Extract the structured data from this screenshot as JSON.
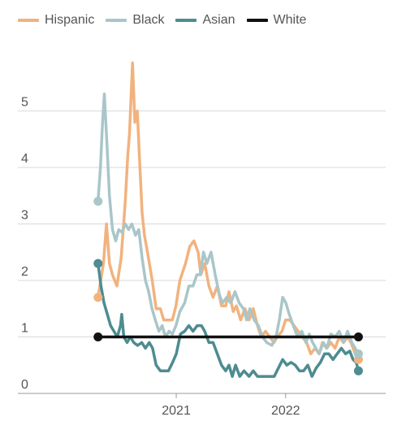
{
  "chart_data": {
    "type": "line",
    "title": "",
    "xlabel": "",
    "ylabel": "",
    "x_tick_labels": [
      "2021",
      "2022"
    ],
    "y_ticks": [
      0,
      1,
      2,
      3,
      4,
      5
    ],
    "ylim": [
      0,
      6.1
    ],
    "xlim": [
      "2020-01-01",
      "2022-12-01"
    ],
    "grid": "horizontal",
    "legend_position": "top-left",
    "series": [
      {
        "name": "Hispanic",
        "color": "#f2b27e",
        "points": [
          [
            "2020-04-15",
            1.7
          ],
          [
            "2020-05-03",
            2.3
          ],
          [
            "2020-05-13",
            3.0
          ],
          [
            "2020-05-23",
            2.3
          ],
          [
            "2020-06-02",
            2.1
          ],
          [
            "2020-06-17",
            1.9
          ],
          [
            "2020-07-01",
            2.4
          ],
          [
            "2020-07-15",
            3.4
          ],
          [
            "2020-07-23",
            4.2
          ],
          [
            "2020-07-29",
            4.6
          ],
          [
            "2020-08-08",
            5.85
          ],
          [
            "2020-08-16",
            4.8
          ],
          [
            "2020-08-24",
            5.0
          ],
          [
            "2020-09-01",
            4.1
          ],
          [
            "2020-09-09",
            3.2
          ],
          [
            "2020-09-17",
            2.8
          ],
          [
            "2020-09-27",
            2.5
          ],
          [
            "2020-10-13",
            2.0
          ],
          [
            "2020-10-26",
            1.5
          ],
          [
            "2020-11-09",
            1.5
          ],
          [
            "2020-11-20",
            1.3
          ],
          [
            "2020-12-05",
            1.3
          ],
          [
            "2020-12-19",
            1.3
          ],
          [
            "2020-12-31",
            1.55
          ],
          [
            "2021-01-13",
            2.0
          ],
          [
            "2021-02-01",
            2.3
          ],
          [
            "2021-02-15",
            2.6
          ],
          [
            "2021-03-01",
            2.7
          ],
          [
            "2021-03-15",
            2.5
          ],
          [
            "2021-03-24",
            2.1
          ],
          [
            "2021-04-06",
            2.3
          ],
          [
            "2021-04-20",
            1.9
          ],
          [
            "2021-05-04",
            1.7
          ],
          [
            "2021-05-18",
            1.9
          ],
          [
            "2021-06-01",
            1.55
          ],
          [
            "2021-06-15",
            1.55
          ],
          [
            "2021-06-26",
            1.8
          ],
          [
            "2021-07-10",
            1.45
          ],
          [
            "2021-07-21",
            1.55
          ],
          [
            "2021-08-04",
            1.3
          ],
          [
            "2021-08-18",
            1.5
          ],
          [
            "2021-09-01",
            1.3
          ],
          [
            "2021-09-15",
            1.5
          ],
          [
            "2021-09-29",
            1.2
          ],
          [
            "2021-10-12",
            1.0
          ],
          [
            "2021-10-26",
            1.1
          ],
          [
            "2021-11-09",
            1.0
          ],
          [
            "2021-11-23",
            0.9
          ],
          [
            "2021-12-04",
            1.0
          ],
          [
            "2021-12-20",
            1.1
          ],
          [
            "2022-01-01",
            1.3
          ],
          [
            "2022-01-15",
            1.3
          ],
          [
            "2022-01-29",
            1.2
          ],
          [
            "2022-02-12",
            1.1
          ],
          [
            "2022-02-26",
            1.0
          ],
          [
            "2022-03-12",
            0.9
          ],
          [
            "2022-03-26",
            0.7
          ],
          [
            "2022-04-09",
            0.8
          ],
          [
            "2022-04-23",
            0.7
          ],
          [
            "2022-05-04",
            0.9
          ],
          [
            "2022-05-18",
            0.8
          ],
          [
            "2022-06-01",
            0.9
          ],
          [
            "2022-06-15",
            0.8
          ],
          [
            "2022-06-29",
            1.0
          ],
          [
            "2022-07-13",
            0.9
          ],
          [
            "2022-07-27",
            1.0
          ],
          [
            "2022-08-07",
            0.9
          ],
          [
            "2022-08-21",
            0.7
          ],
          [
            "2022-09-01",
            0.6
          ]
        ]
      },
      {
        "name": "Black",
        "color": "#a9c6c9",
        "points": [
          [
            "2020-04-15",
            3.4
          ],
          [
            "2020-04-23",
            4.0
          ],
          [
            "2020-04-30",
            4.8
          ],
          [
            "2020-05-06",
            5.3
          ],
          [
            "2020-05-14",
            4.5
          ],
          [
            "2020-05-23",
            3.5
          ],
          [
            "2020-06-02",
            2.9
          ],
          [
            "2020-06-13",
            2.7
          ],
          [
            "2020-06-23",
            2.9
          ],
          [
            "2020-07-04",
            2.85
          ],
          [
            "2020-07-15",
            3.0
          ],
          [
            "2020-07-26",
            2.9
          ],
          [
            "2020-08-06",
            3.0
          ],
          [
            "2020-08-18",
            2.8
          ],
          [
            "2020-08-29",
            2.9
          ],
          [
            "2020-09-09",
            2.4
          ],
          [
            "2020-09-20",
            2.0
          ],
          [
            "2020-10-01",
            1.8
          ],
          [
            "2020-10-12",
            1.5
          ],
          [
            "2020-10-23",
            1.3
          ],
          [
            "2020-11-04",
            1.1
          ],
          [
            "2020-11-15",
            1.2
          ],
          [
            "2020-11-26",
            1.0
          ],
          [
            "2020-12-08",
            1.1
          ],
          [
            "2020-12-19",
            1.05
          ],
          [
            "2020-12-31",
            1.2
          ],
          [
            "2021-01-13",
            1.45
          ],
          [
            "2021-01-29",
            1.6
          ],
          [
            "2021-02-12",
            1.9
          ],
          [
            "2021-02-26",
            1.9
          ],
          [
            "2021-03-11",
            2.1
          ],
          [
            "2021-03-22",
            2.1
          ],
          [
            "2021-04-02",
            2.5
          ],
          [
            "2021-04-13",
            2.3
          ],
          [
            "2021-04-27",
            2.5
          ],
          [
            "2021-05-11",
            2.1
          ],
          [
            "2021-05-25",
            1.75
          ],
          [
            "2021-06-04",
            1.6
          ],
          [
            "2021-06-18",
            1.7
          ],
          [
            "2021-07-02",
            1.6
          ],
          [
            "2021-07-16",
            1.8
          ],
          [
            "2021-07-30",
            1.6
          ],
          [
            "2021-08-13",
            1.5
          ],
          [
            "2021-08-24",
            1.3
          ],
          [
            "2021-09-04",
            1.5
          ],
          [
            "2021-09-18",
            1.3
          ],
          [
            "2021-10-02",
            1.2
          ],
          [
            "2021-10-16",
            1.0
          ],
          [
            "2021-10-30",
            0.9
          ],
          [
            "2021-11-16",
            0.85
          ],
          [
            "2021-11-30",
            1.0
          ],
          [
            "2021-12-11",
            1.3
          ],
          [
            "2021-12-22",
            1.7
          ],
          [
            "2022-01-02",
            1.6
          ],
          [
            "2022-01-13",
            1.4
          ],
          [
            "2022-01-27",
            1.2
          ],
          [
            "2022-02-10",
            1.0
          ],
          [
            "2022-02-24",
            1.1
          ],
          [
            "2022-03-10",
            0.9
          ],
          [
            "2022-03-21",
            1.05
          ],
          [
            "2022-04-01",
            0.9
          ],
          [
            "2022-04-12",
            0.8
          ],
          [
            "2022-04-23",
            0.7
          ],
          [
            "2022-05-07",
            0.9
          ],
          [
            "2022-05-18",
            0.8
          ],
          [
            "2022-06-01",
            1.05
          ],
          [
            "2022-06-15",
            1.0
          ],
          [
            "2022-06-29",
            1.1
          ],
          [
            "2022-07-13",
            0.9
          ],
          [
            "2022-07-27",
            1.1
          ],
          [
            "2022-08-10",
            0.9
          ],
          [
            "2022-08-21",
            0.8
          ],
          [
            "2022-09-01",
            0.7
          ]
        ]
      },
      {
        "name": "Asian",
        "color": "#4d8c91",
        "points": [
          [
            "2020-04-15",
            2.3
          ],
          [
            "2020-04-25",
            1.9
          ],
          [
            "2020-05-05",
            1.6
          ],
          [
            "2020-05-16",
            1.4
          ],
          [
            "2020-05-27",
            1.2
          ],
          [
            "2020-06-07",
            1.1
          ],
          [
            "2020-06-18",
            1.0
          ],
          [
            "2020-06-29",
            1.2
          ],
          [
            "2020-07-03",
            1.4
          ],
          [
            "2020-07-10",
            1.0
          ],
          [
            "2020-07-21",
            0.9
          ],
          [
            "2020-08-01",
            1.0
          ],
          [
            "2020-08-12",
            0.9
          ],
          [
            "2020-08-25",
            0.85
          ],
          [
            "2020-09-08",
            0.9
          ],
          [
            "2020-09-20",
            0.8
          ],
          [
            "2020-10-03",
            0.9
          ],
          [
            "2020-10-14",
            0.8
          ],
          [
            "2020-10-26",
            0.5
          ],
          [
            "2020-11-09",
            0.4
          ],
          [
            "2020-11-23",
            0.4
          ],
          [
            "2020-12-06",
            0.4
          ],
          [
            "2020-12-20",
            0.55
          ],
          [
            "2021-01-01",
            0.7
          ],
          [
            "2021-01-15",
            1.05
          ],
          [
            "2021-01-29",
            1.1
          ],
          [
            "2021-02-12",
            1.2
          ],
          [
            "2021-02-26",
            1.1
          ],
          [
            "2021-03-12",
            1.2
          ],
          [
            "2021-03-26",
            1.2
          ],
          [
            "2021-04-06",
            1.1
          ],
          [
            "2021-04-20",
            0.9
          ],
          [
            "2021-05-04",
            0.9
          ],
          [
            "2021-05-18",
            0.7
          ],
          [
            "2021-06-01",
            0.5
          ],
          [
            "2021-06-15",
            0.4
          ],
          [
            "2021-06-26",
            0.5
          ],
          [
            "2021-07-07",
            0.3
          ],
          [
            "2021-07-18",
            0.5
          ],
          [
            "2021-08-01",
            0.3
          ],
          [
            "2021-08-15",
            0.4
          ],
          [
            "2021-09-01",
            0.3
          ],
          [
            "2021-09-15",
            0.4
          ],
          [
            "2021-09-29",
            0.3
          ],
          [
            "2021-10-13",
            0.3
          ],
          [
            "2021-10-27",
            0.3
          ],
          [
            "2021-11-10",
            0.3
          ],
          [
            "2021-11-24",
            0.3
          ],
          [
            "2021-12-08",
            0.45
          ],
          [
            "2021-12-22",
            0.6
          ],
          [
            "2022-01-05",
            0.5
          ],
          [
            "2022-01-19",
            0.55
          ],
          [
            "2022-02-02",
            0.5
          ],
          [
            "2022-02-16",
            0.4
          ],
          [
            "2022-03-02",
            0.4
          ],
          [
            "2022-03-16",
            0.5
          ],
          [
            "2022-03-30",
            0.3
          ],
          [
            "2022-04-13",
            0.45
          ],
          [
            "2022-04-27",
            0.55
          ],
          [
            "2022-05-11",
            0.7
          ],
          [
            "2022-05-25",
            0.7
          ],
          [
            "2022-06-08",
            0.6
          ],
          [
            "2022-06-22",
            0.7
          ],
          [
            "2022-07-06",
            0.8
          ],
          [
            "2022-07-20",
            0.7
          ],
          [
            "2022-08-03",
            0.75
          ],
          [
            "2022-08-14",
            0.6
          ],
          [
            "2022-08-25",
            0.55
          ],
          [
            "2022-09-01",
            0.4
          ]
        ]
      },
      {
        "name": "White",
        "color": "#111111",
        "points": [
          [
            "2020-04-15",
            1.0
          ],
          [
            "2022-09-01",
            1.0
          ]
        ]
      }
    ]
  }
}
